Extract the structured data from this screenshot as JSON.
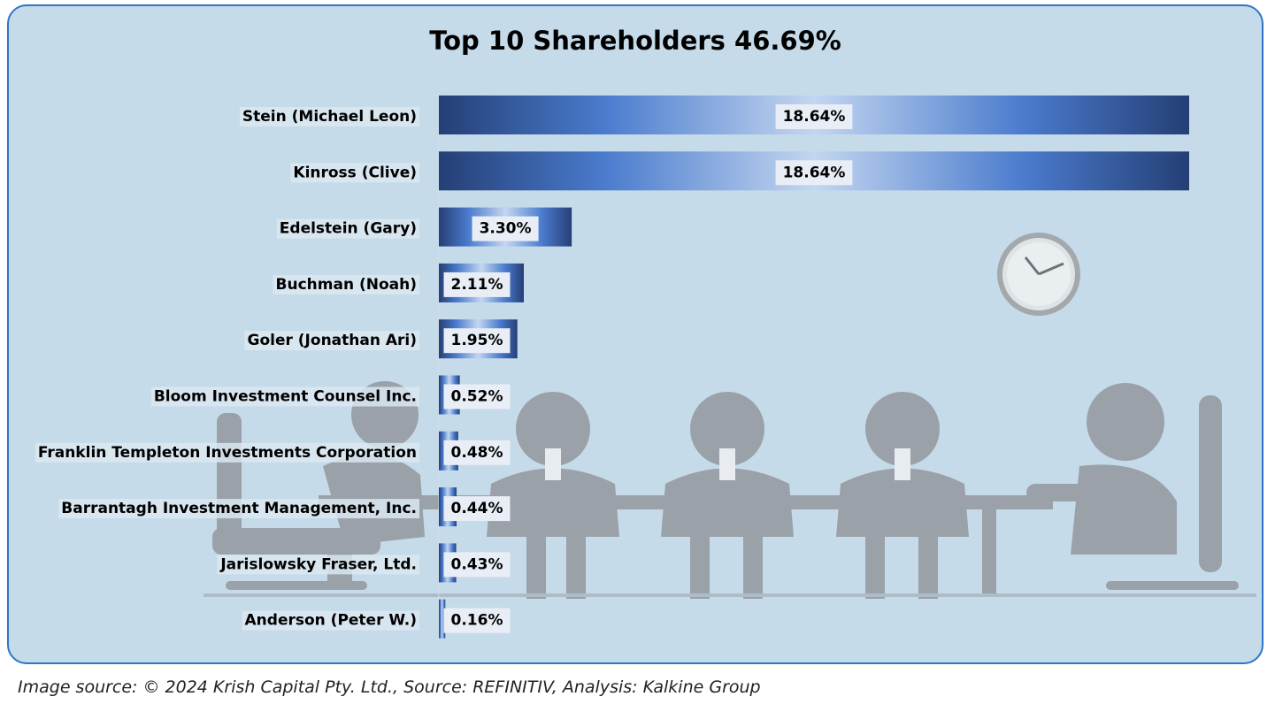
{
  "chart_data": {
    "type": "bar",
    "orientation": "horizontal",
    "title": "Top 10 Shareholders 46.69%",
    "categories": [
      "Stein (Michael Leon)",
      "Kinross (Clive)",
      "Edelstein (Gary)",
      "Buchman (Noah)",
      "Goler (Jonathan Ari)",
      "Bloom Investment Counsel Inc.",
      "Franklin Templeton Investments Corporation",
      "Barrantagh Investment Management, Inc.",
      "Jarislowsky Fraser, Ltd.",
      "Anderson (Peter W.)"
    ],
    "values": [
      18.64,
      18.64,
      3.3,
      2.11,
      1.95,
      0.52,
      0.48,
      0.44,
      0.43,
      0.16
    ],
    "value_labels": [
      "18.64%",
      "18.64%",
      "3.30%",
      "2.11%",
      "1.95%",
      "0.52%",
      "0.48%",
      "0.44%",
      "0.43%",
      "0.16%"
    ],
    "xlim": [
      0,
      18.64
    ],
    "grid": false,
    "legend": "none",
    "colors": {
      "bar_dark": "#253f76",
      "bar_mid": "#4a7bcd",
      "bar_light": "#c3d6f0",
      "background": "#c5dbe9",
      "border": "#2f75c9",
      "illustration": "#8a8e92"
    }
  },
  "footer": {
    "source": "Image source: © 2024 Krish Capital Pty. Ltd., Source: REFINITIV, Analysis: Kalkine Group"
  }
}
